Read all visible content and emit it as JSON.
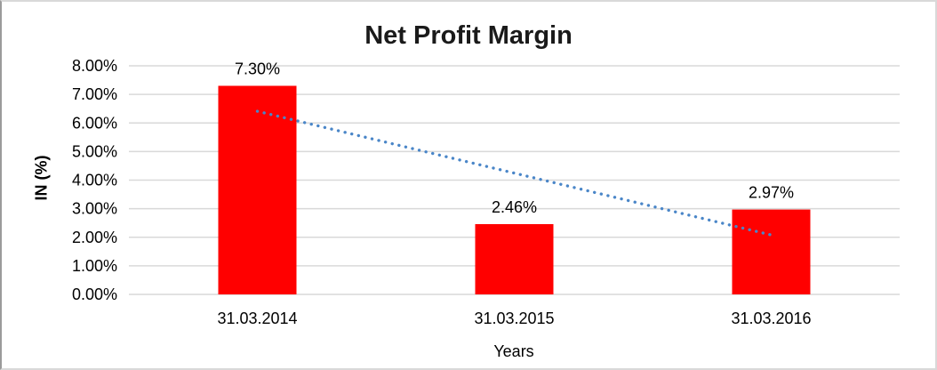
{
  "chart_data": {
    "type": "bar",
    "title": "Net Profit Margin",
    "xlabel": "Years",
    "ylabel": "IN (%)",
    "categories": [
      "31.03.2014",
      "31.03.2015",
      "31.03.2016"
    ],
    "values": [
      7.3,
      2.46,
      2.97
    ],
    "data_labels": [
      "7.30%",
      "2.46%",
      "2.97%"
    ],
    "ylim": [
      0,
      8
    ],
    "ytick_step": 1,
    "ytick_labels": [
      "0.00%",
      "1.00%",
      "2.00%",
      "3.00%",
      "4.00%",
      "5.00%",
      "6.00%",
      "7.00%",
      "8.00%"
    ],
    "grid": true,
    "legend": "none",
    "bar_color": "#ff0000",
    "gridline_color": "#d9d9d9",
    "trendline": {
      "type": "linear",
      "style": "dotted",
      "color": "#4a86c8",
      "start_value": 6.41,
      "end_value": 2.08
    }
  }
}
